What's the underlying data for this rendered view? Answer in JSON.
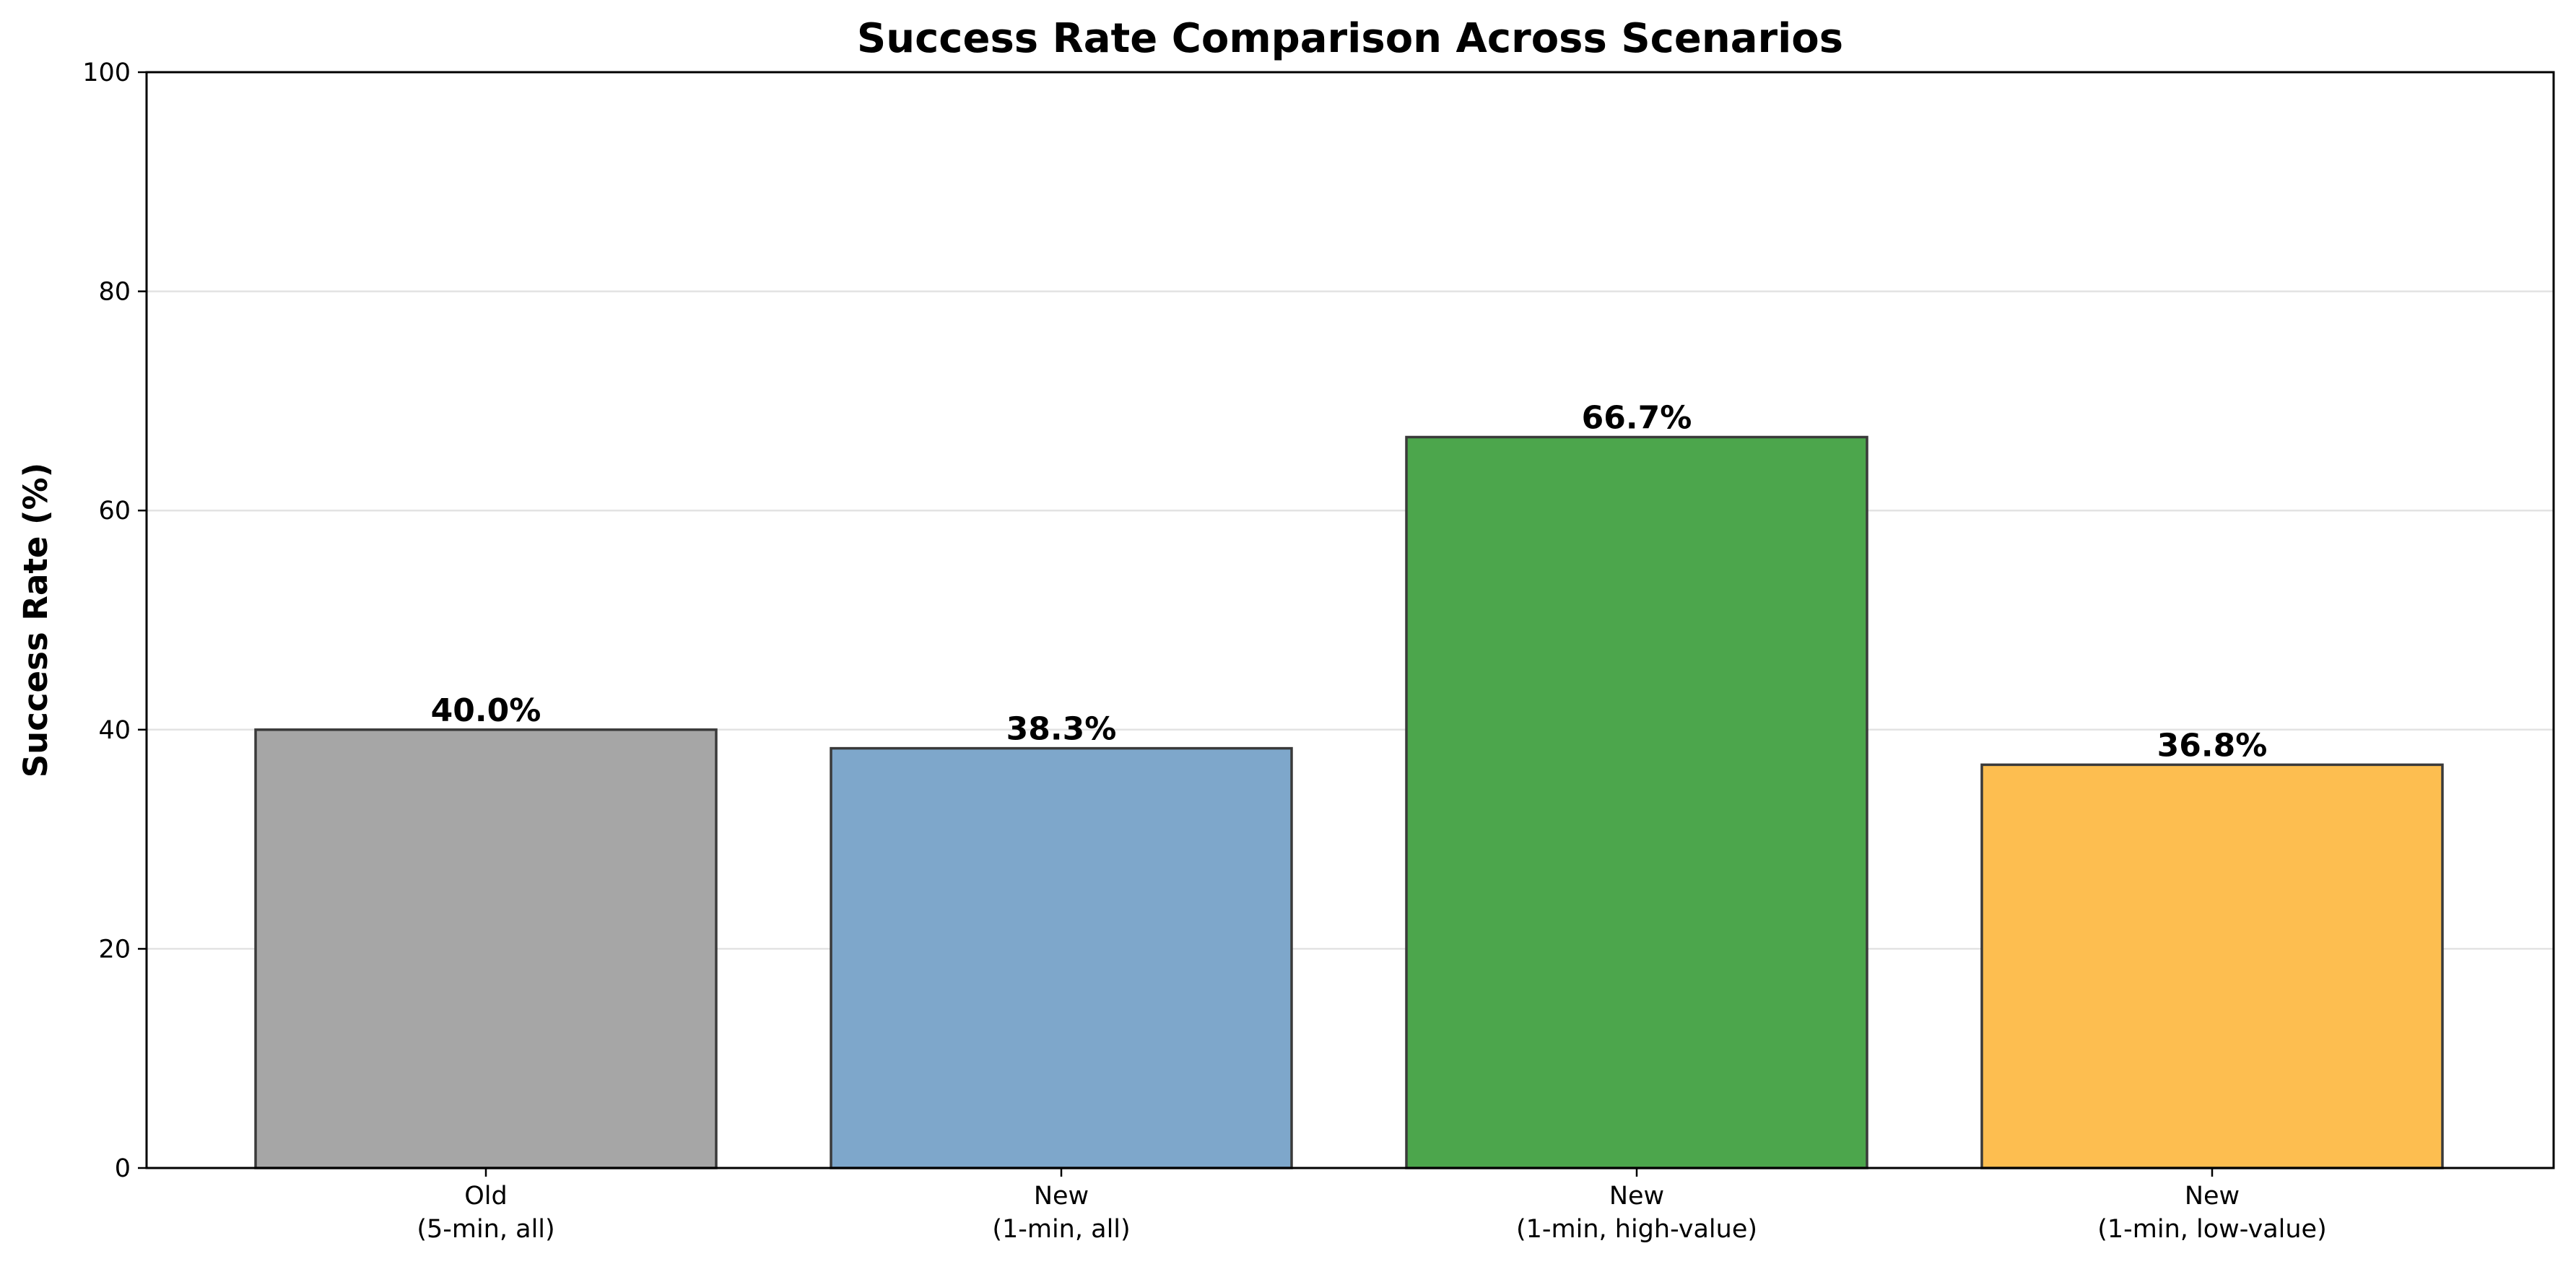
{
  "chart_data": {
    "type": "bar",
    "title": "Success Rate Comparison Across Scenarios",
    "xlabel": "",
    "ylabel": "Success Rate (%)",
    "ylim": [
      0,
      100
    ],
    "yticks": [
      0,
      20,
      40,
      60,
      80,
      100
    ],
    "grid": "horizontal",
    "categories": [
      [
        "Old",
        "(5-min, all)"
      ],
      [
        "New",
        "(1-min, all)"
      ],
      [
        "New",
        "(1-min, high-value)"
      ],
      [
        "New",
        "(1-min, low-value)"
      ]
    ],
    "values": [
      40.0,
      38.3,
      66.7,
      36.8
    ],
    "value_labels": [
      "40.0%",
      "38.3%",
      "66.7%",
      "36.8%"
    ],
    "colors": [
      "#a6a6a6",
      "#7ea7cb",
      "#4ca64c",
      "#fdbe50"
    ],
    "edge_color": "#3a3a3a"
  }
}
